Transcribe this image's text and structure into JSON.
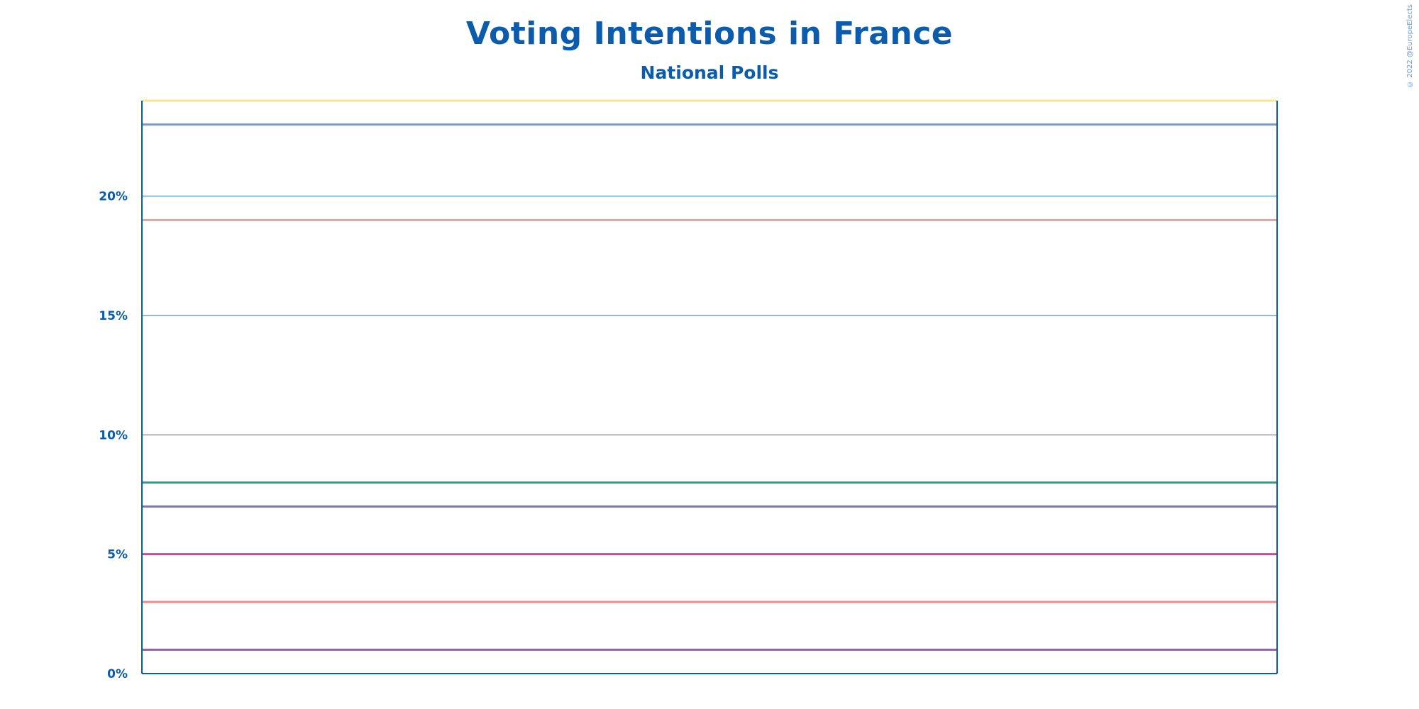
{
  "title": "Voting Intentions in France",
  "subtitle": "National Polls",
  "copyright": "© 2022 @EuropeElects",
  "chart_data": {
    "type": "line",
    "title": "Voting Intentions in France",
    "subtitle": "National Polls",
    "xlabel": "",
    "ylabel": "",
    "ylim": [
      0,
      24
    ],
    "y_ticks": [
      "0%",
      "5%",
      "10%",
      "15%",
      "20%"
    ],
    "y_tick_values": [
      0,
      5,
      10,
      15,
      20
    ],
    "grid": true,
    "legend": "none",
    "series": [
      {
        "values": [
          24,
          24
        ],
        "color": "#f5e88a"
      },
      {
        "values": [
          23,
          23
        ],
        "color": "#7f98c8"
      },
      {
        "values": [
          19,
          19
        ],
        "color": "#e3a3a6"
      },
      {
        "values": [
          8,
          8
        ],
        "color": "#2e9d8f"
      },
      {
        "values": [
          7,
          7
        ],
        "color": "#7777bb"
      },
      {
        "values": [
          5,
          5
        ],
        "color": "#b5568f"
      },
      {
        "values": [
          3,
          3
        ],
        "color": "#ee8a8a"
      },
      {
        "values": [
          1,
          1
        ],
        "color": "#a05ab0"
      }
    ],
    "colors": {
      "axis": "#0b5cad",
      "grid": "#2a6fb8"
    }
  }
}
